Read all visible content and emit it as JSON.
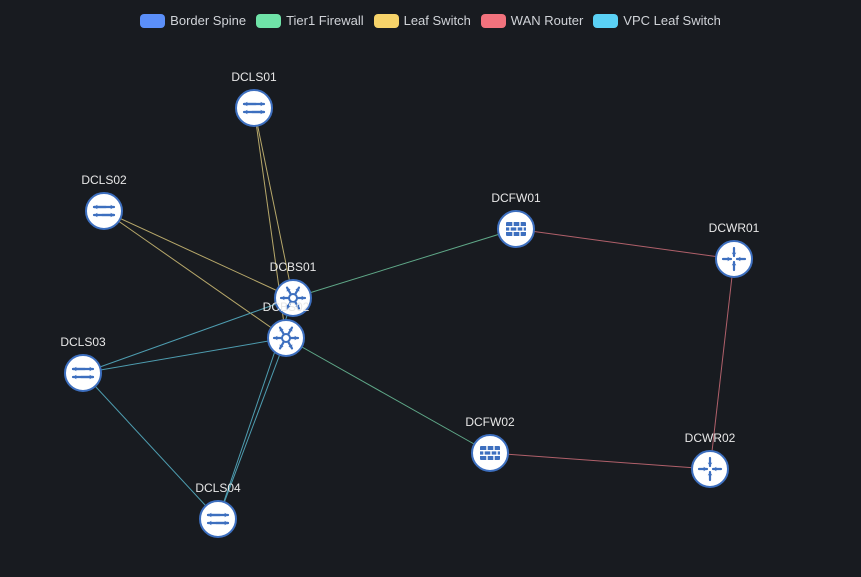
{
  "legend": {
    "items": [
      {
        "key": "border-spine",
        "label": "Border Spine",
        "color": "#5b8ff9"
      },
      {
        "key": "tier1-firewall",
        "label": "Tier1 Firewall",
        "color": "#6fe3a8"
      },
      {
        "key": "leaf-switch",
        "label": "Leaf Switch",
        "color": "#f6d36a"
      },
      {
        "key": "wan-router",
        "label": "WAN Router",
        "color": "#f2727d"
      },
      {
        "key": "vpc-leaf-switch",
        "label": "VPC Leaf Switch",
        "color": "#5ad1f5"
      }
    ]
  },
  "nodes": [
    {
      "id": "DCLS01",
      "label": "DCLS01",
      "type": "leaf",
      "icon": "leaf-switch-icon"
    },
    {
      "id": "DCLS02",
      "label": "DCLS02",
      "type": "leaf",
      "icon": "leaf-switch-icon"
    },
    {
      "id": "DCLS03",
      "label": "DCLS03",
      "type": "leaf",
      "icon": "leaf-switch-icon"
    },
    {
      "id": "DCLS04",
      "label": "DCLS04",
      "type": "leaf",
      "icon": "leaf-switch-icon"
    },
    {
      "id": "DCBS01",
      "label": "DCBS01",
      "type": "spine",
      "icon": "spine-switch-icon"
    },
    {
      "id": "DCBS02",
      "label": "DCBS02",
      "type": "spine",
      "icon": "spine-switch-icon"
    },
    {
      "id": "DCFW01",
      "label": "DCFW01",
      "type": "firewall",
      "icon": "firewall-icon"
    },
    {
      "id": "DCFW02",
      "label": "DCFW02",
      "type": "firewall",
      "icon": "firewall-icon"
    },
    {
      "id": "DCWR01",
      "label": "DCWR01",
      "type": "router",
      "icon": "router-icon"
    },
    {
      "id": "DCWR02",
      "label": "DCWR02",
      "type": "router",
      "icon": "router-icon"
    }
  ],
  "links": [
    {
      "source": "DCLS01",
      "target": "DCBS01",
      "color": "#b7a86a"
    },
    {
      "source": "DCLS01",
      "target": "DCBS02",
      "color": "#b7a86a"
    },
    {
      "source": "DCLS02",
      "target": "DCBS01",
      "color": "#b7a86a"
    },
    {
      "source": "DCLS02",
      "target": "DCBS02",
      "color": "#b7a86a"
    },
    {
      "source": "DCLS03",
      "target": "DCBS01",
      "color": "#4e9db0"
    },
    {
      "source": "DCLS03",
      "target": "DCBS02",
      "color": "#4e9db0"
    },
    {
      "source": "DCLS04",
      "target": "DCBS01",
      "color": "#4e9db0"
    },
    {
      "source": "DCLS04",
      "target": "DCBS02",
      "color": "#4e9db0"
    },
    {
      "source": "DCLS03",
      "target": "DCLS04",
      "color": "#4e9db0"
    },
    {
      "source": "DCBS01",
      "target": "DCFW01",
      "color": "#5fa888"
    },
    {
      "source": "DCBS02",
      "target": "DCFW02",
      "color": "#5fa888"
    },
    {
      "source": "DCFW01",
      "target": "DCWR01",
      "color": "#b0606a"
    },
    {
      "source": "DCFW02",
      "target": "DCWR02",
      "color": "#b0606a"
    },
    {
      "source": "DCWR01",
      "target": "DCWR02",
      "color": "#b0606a"
    }
  ],
  "theme": {
    "node_fill": "#ffffff",
    "node_stroke": "#3d6fbf",
    "icon_color": "#3d6fbf"
  }
}
